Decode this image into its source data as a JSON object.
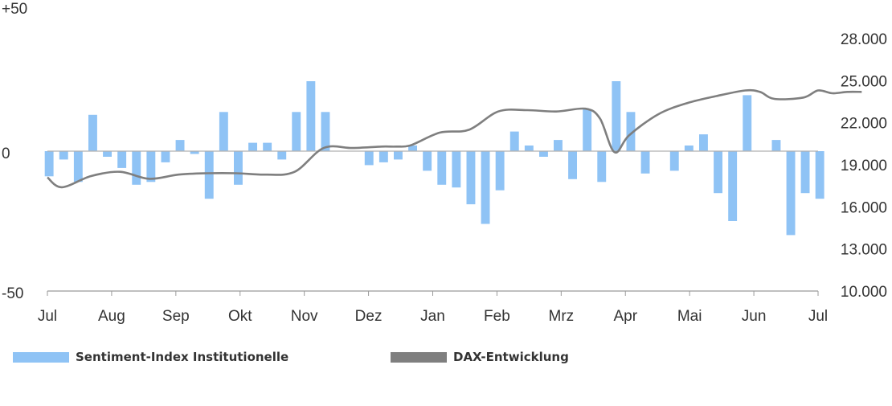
{
  "chart_data": {
    "type": "bar+line",
    "title": "",
    "months": [
      "Jul",
      "Aug",
      "Sep",
      "Okt",
      "Nov",
      "Dez",
      "Jan",
      "Feb",
      "Mrz",
      "Apr",
      "Mai",
      "Jun",
      "Jul"
    ],
    "left_axis": {
      "labels": [
        "+50",
        "0",
        "-50"
      ],
      "range": [
        -50,
        50
      ]
    },
    "right_axis": {
      "labels": [
        "28.000",
        "25.000",
        "22.000",
        "19.000",
        "16.000",
        "13.000",
        "10.000"
      ],
      "range": [
        10000,
        28000
      ]
    },
    "series": [
      {
        "name": "Sentiment-Index Institutionelle",
        "type": "bar",
        "axis": "left",
        "color": "#8fc3f5",
        "values": [
          -9,
          -3,
          -11,
          13,
          -2,
          -6,
          -12,
          -11,
          -4,
          4,
          -1,
          -17,
          14,
          -12,
          3,
          3,
          -3,
          14,
          25,
          14,
          0,
          0,
          -5,
          -4,
          -3,
          2,
          -7,
          -12,
          -13,
          -19,
          -26,
          -14,
          7,
          2,
          -2,
          4,
          -10,
          15,
          -11,
          25,
          14,
          -8,
          0,
          -7,
          2,
          6,
          -15,
          -25,
          20,
          0,
          4,
          -30,
          -15,
          -17
        ]
      },
      {
        "name": "DAX-Entwicklung",
        "type": "line",
        "axis": "right",
        "color": "#7f7f7f",
        "points": [
          [
            0,
            18100
          ],
          [
            1,
            17400
          ],
          [
            3,
            18200
          ],
          [
            5,
            18500
          ],
          [
            7,
            18000
          ],
          [
            9,
            18300
          ],
          [
            11,
            18400
          ],
          [
            13,
            18400
          ],
          [
            15,
            18300
          ],
          [
            17,
            18500
          ],
          [
            19,
            20200
          ],
          [
            21,
            20200
          ],
          [
            23,
            20300
          ],
          [
            24,
            20300
          ],
          [
            25,
            20400
          ],
          [
            27,
            21300
          ],
          [
            29,
            21500
          ],
          [
            31,
            22800
          ],
          [
            33,
            22900
          ],
          [
            35,
            22800
          ],
          [
            37,
            23000
          ],
          [
            38,
            22300
          ],
          [
            39,
            19900
          ],
          [
            40,
            21100
          ],
          [
            42,
            22600
          ],
          [
            44,
            23400
          ],
          [
            46,
            23900
          ],
          [
            48,
            24300
          ],
          [
            49,
            24200
          ],
          [
            50,
            23700
          ],
          [
            52,
            23800
          ],
          [
            53,
            24300
          ],
          [
            54,
            24100
          ],
          [
            55,
            24200
          ],
          [
            56,
            24200
          ]
        ]
      }
    ],
    "legend_position": "bottom",
    "grid": false
  }
}
